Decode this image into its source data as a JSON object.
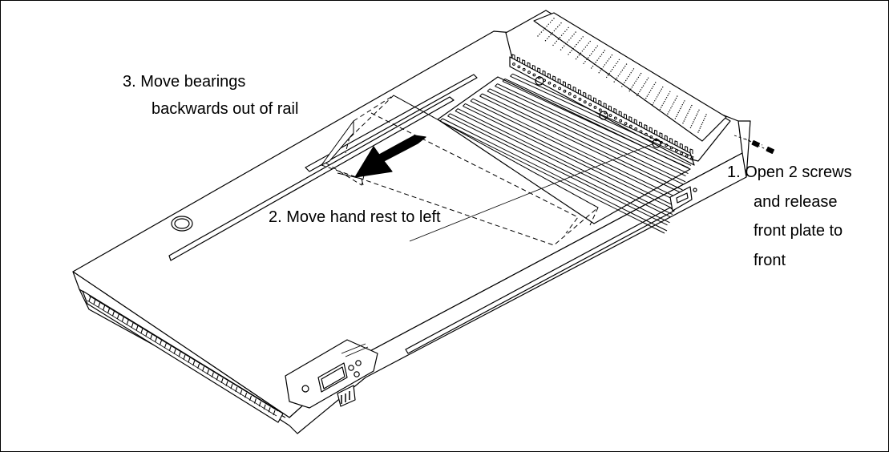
{
  "steps": {
    "step1": {
      "lines": [
        "1.  Open 2 screws",
        "and release",
        "front plate to",
        "front"
      ]
    },
    "step2": {
      "lines": [
        "2.  Move hand rest to left"
      ]
    },
    "step3": {
      "lines": [
        "3.  Move bearings",
        "backwards out of rail"
      ]
    }
  },
  "colors": {
    "line": "#000000",
    "background": "#ffffff"
  }
}
